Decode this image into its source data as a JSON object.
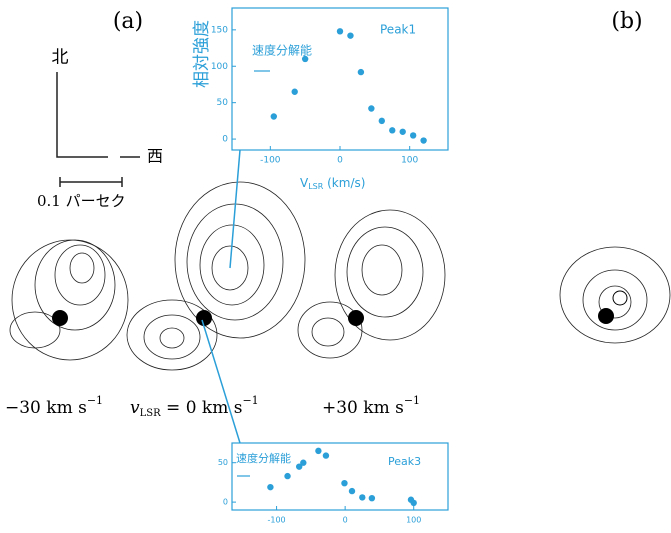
{
  "panel_labels": [
    "(a)",
    "(b)"
  ],
  "compass": {
    "north": "北",
    "west": "西",
    "scale": "0.1 パーセク"
  },
  "velocity_labels": [
    {
      "text": "−30 km s",
      "sup": "−1"
    },
    {
      "main": "v",
      "sub": "LSR",
      "rest": " = 0 km s",
      "sup": "−1"
    },
    {
      "text": "+30 km s",
      "sup": "−1"
    }
  ],
  "chart_data": [
    {
      "type": "scatter",
      "title": "Peak1",
      "ylabel": "相対強度",
      "annotation": "速度分解能",
      "xlabel": {
        "main": "V",
        "sub": "LSR",
        "rest": " (km/s)"
      },
      "x": [
        -95,
        -65,
        -50,
        0,
        15,
        30,
        45,
        60,
        75,
        90,
        105,
        120
      ],
      "y": [
        31,
        65,
        110,
        148,
        142,
        92,
        42,
        25,
        12,
        10,
        5,
        -2
      ],
      "color": "#2b9fd8",
      "xlim": [
        -155,
        155
      ],
      "ylim": [
        -15,
        180
      ],
      "xticks": [
        -100,
        0,
        100
      ],
      "yticks": [
        0,
        50,
        100,
        150
      ]
    },
    {
      "type": "scatter",
      "title": "Peak3",
      "annotation": "速度分解能",
      "x": [
        -109,
        -84,
        -67,
        -61,
        -39,
        -28,
        -1,
        10,
        25,
        39,
        96,
        100
      ],
      "y": [
        19,
        33,
        45,
        50,
        65,
        59,
        24,
        14,
        6,
        5,
        3,
        -1
      ],
      "color": "#2b9fd8",
      "xlim": [
        -165,
        150
      ],
      "ylim": [
        -10,
        75
      ],
      "xticks": [
        -100,
        0,
        100
      ],
      "yticks": [
        0,
        50
      ]
    }
  ]
}
